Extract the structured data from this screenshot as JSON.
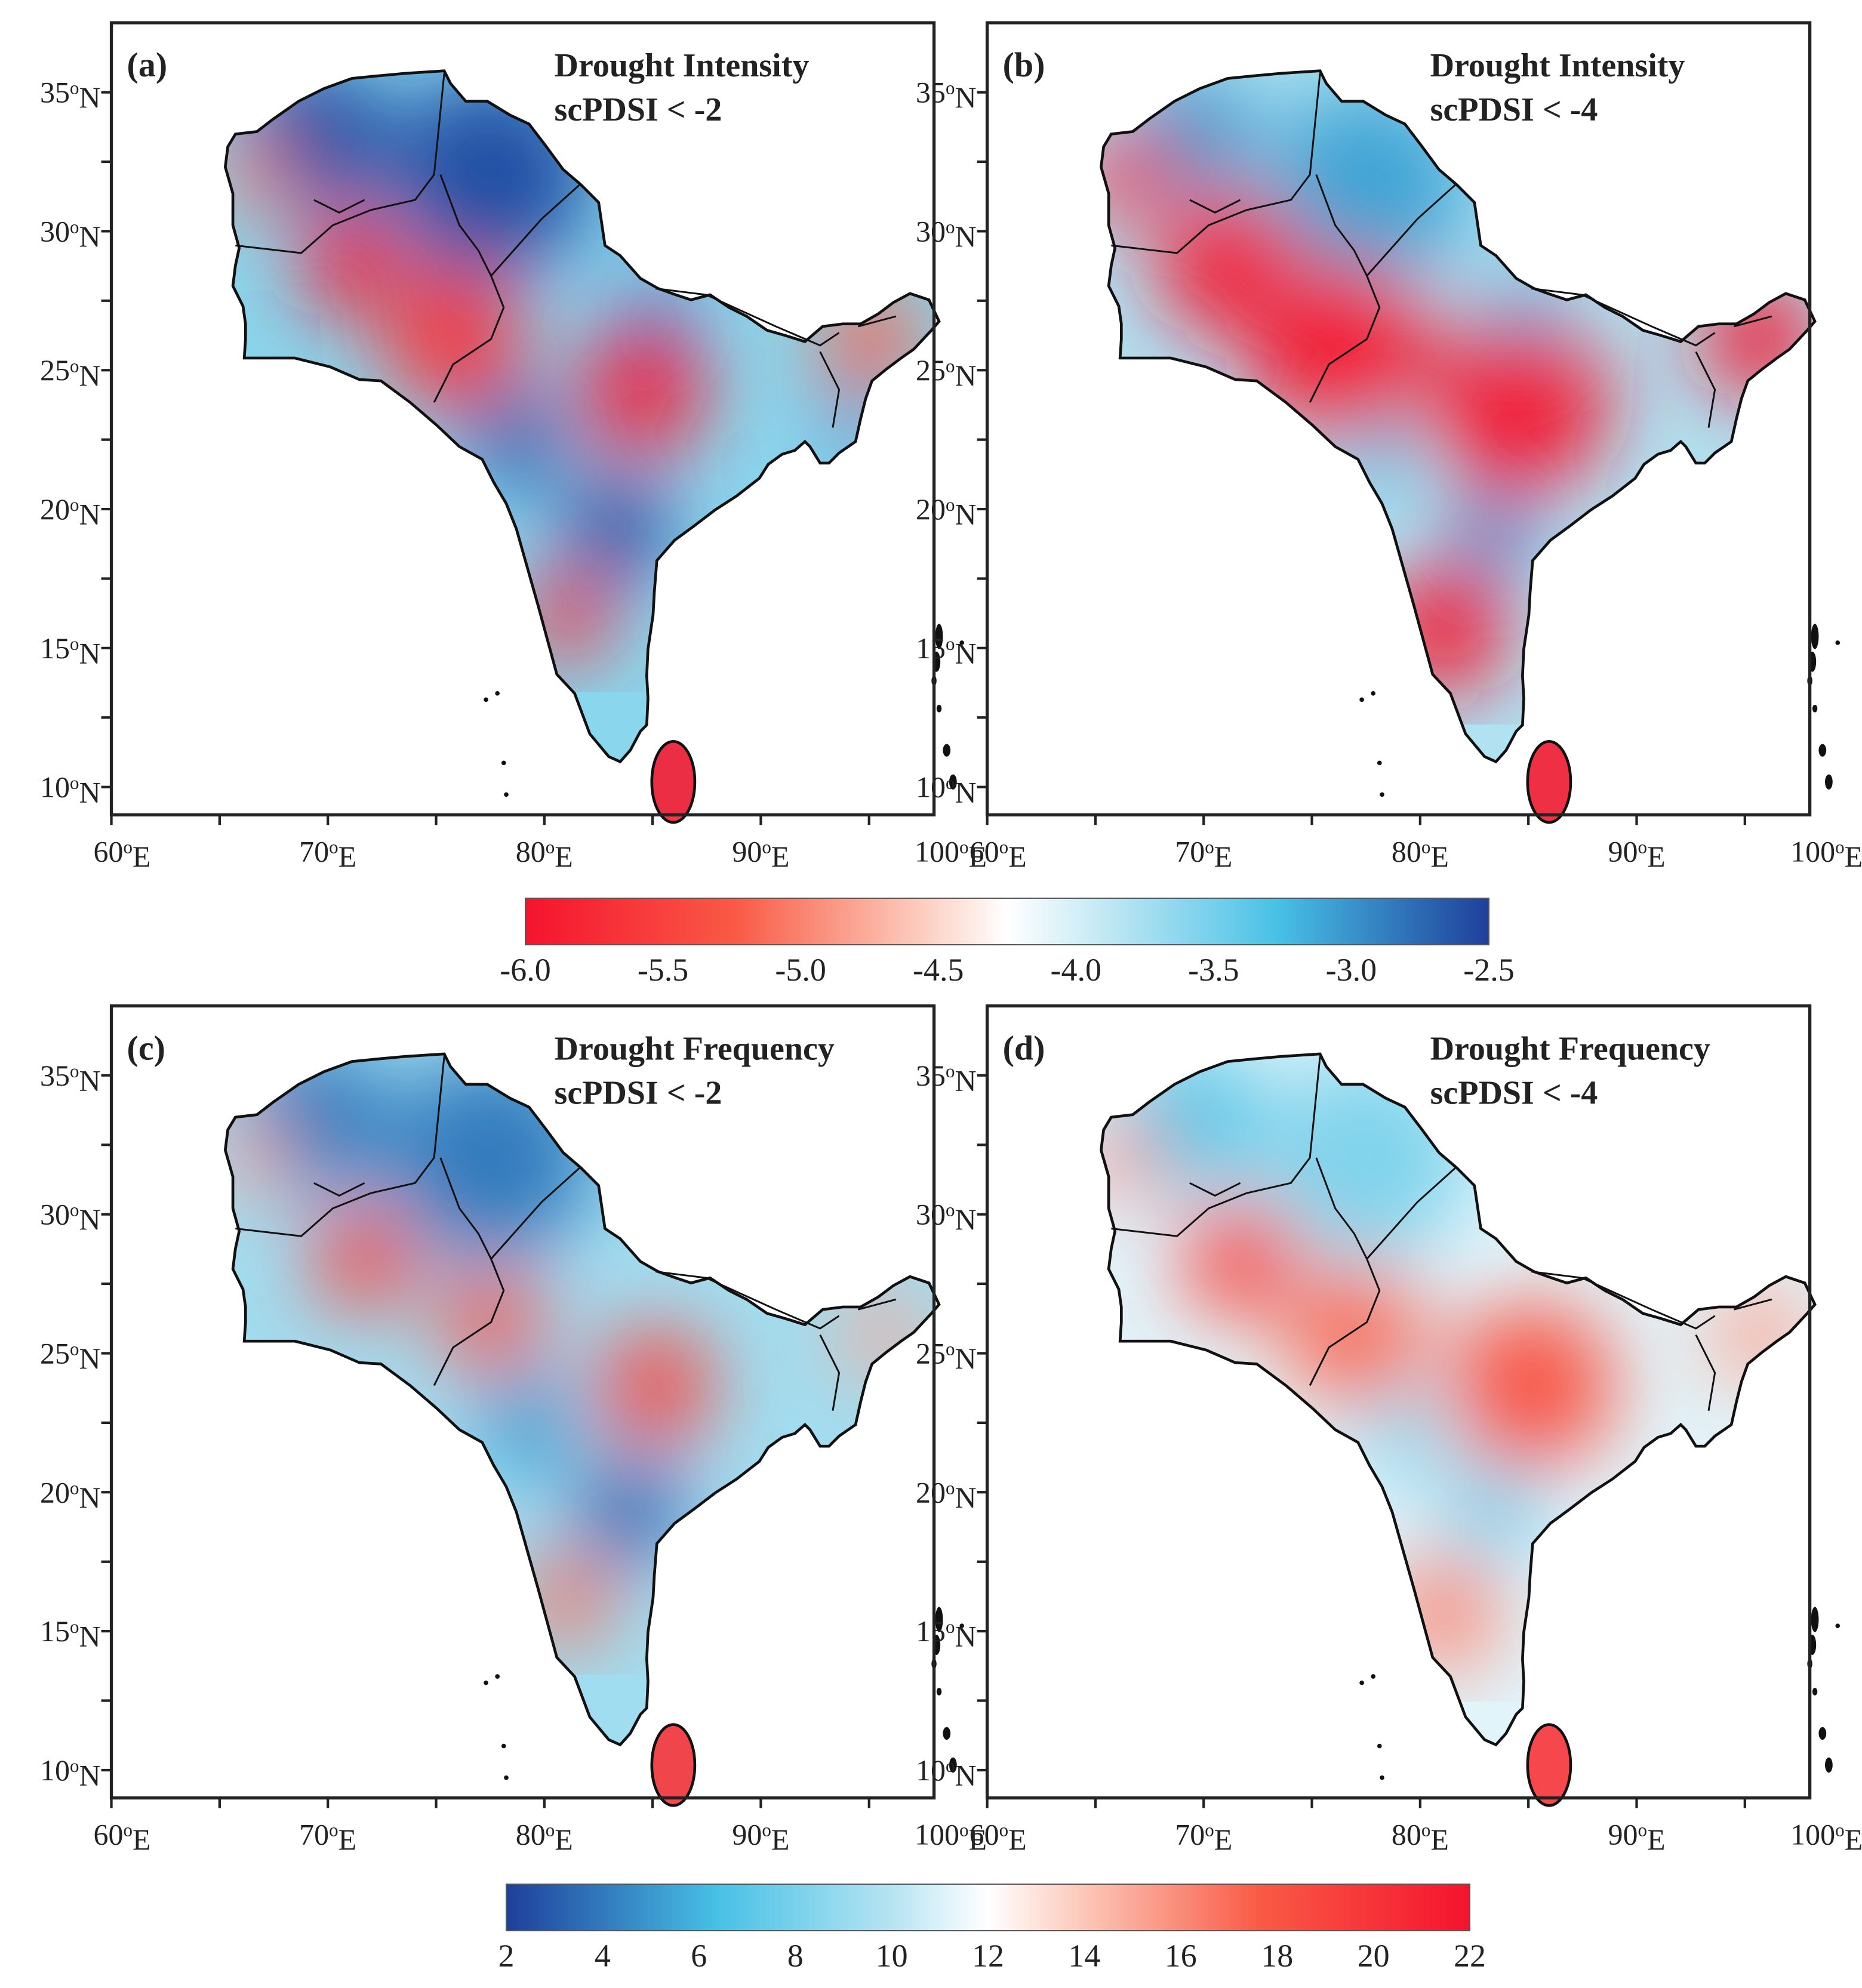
{
  "figure": {
    "panels": [
      {
        "label": "(a)",
        "title_line1": "Drought Intensity",
        "title_line2": "scPDSI < -2",
        "scale": "intensity",
        "field": "a"
      },
      {
        "label": "(b)",
        "title_line1": "Drought Intensity",
        "title_line2": "scPDSI < -4",
        "scale": "intensity",
        "field": "b"
      },
      {
        "label": "(c)",
        "title_line1": "Drought Frequency",
        "title_line2": "scPDSI < -2",
        "scale": "frequency",
        "field": "c"
      },
      {
        "label": "(d)",
        "title_line1": "Drought Frequency",
        "title_line2": "scPDSI < -4",
        "scale": "frequency",
        "field": "d"
      }
    ],
    "lon_labels": [
      "60oE",
      "70oE",
      "80oE",
      "90oE",
      "100oE"
    ],
    "lat_labels": [
      "35oN",
      "30oN",
      "25oN",
      "20oN",
      "15oN",
      "10oN"
    ],
    "lon_range": [
      60,
      98
    ],
    "lat_range": [
      9,
      37.5
    ],
    "colorbar_intensity": {
      "ticks": [
        "-6.0",
        "-5.5",
        "-5.0",
        "-4.5",
        "-4.0",
        "-3.5",
        "-3.0",
        "-2.5"
      ],
      "range": [
        -6.0,
        -2.5
      ],
      "low_color": "#f5132e",
      "mid_color": "#ffffff",
      "high_color": "#1f3f9a",
      "accent_cyan": "#48c1e6"
    },
    "colorbar_frequency": {
      "ticks": [
        "2",
        "4",
        "6",
        "8",
        "10",
        "12",
        "14",
        "16",
        "18",
        "20",
        "22"
      ],
      "range": [
        2,
        22
      ],
      "low_color": "#1f3f9a",
      "mid_color": "#ffffff",
      "high_color": "#f5132e",
      "accent_cyan": "#48c1e6"
    },
    "land_color": "#ffffff",
    "coast_color": "#111111"
  }
}
